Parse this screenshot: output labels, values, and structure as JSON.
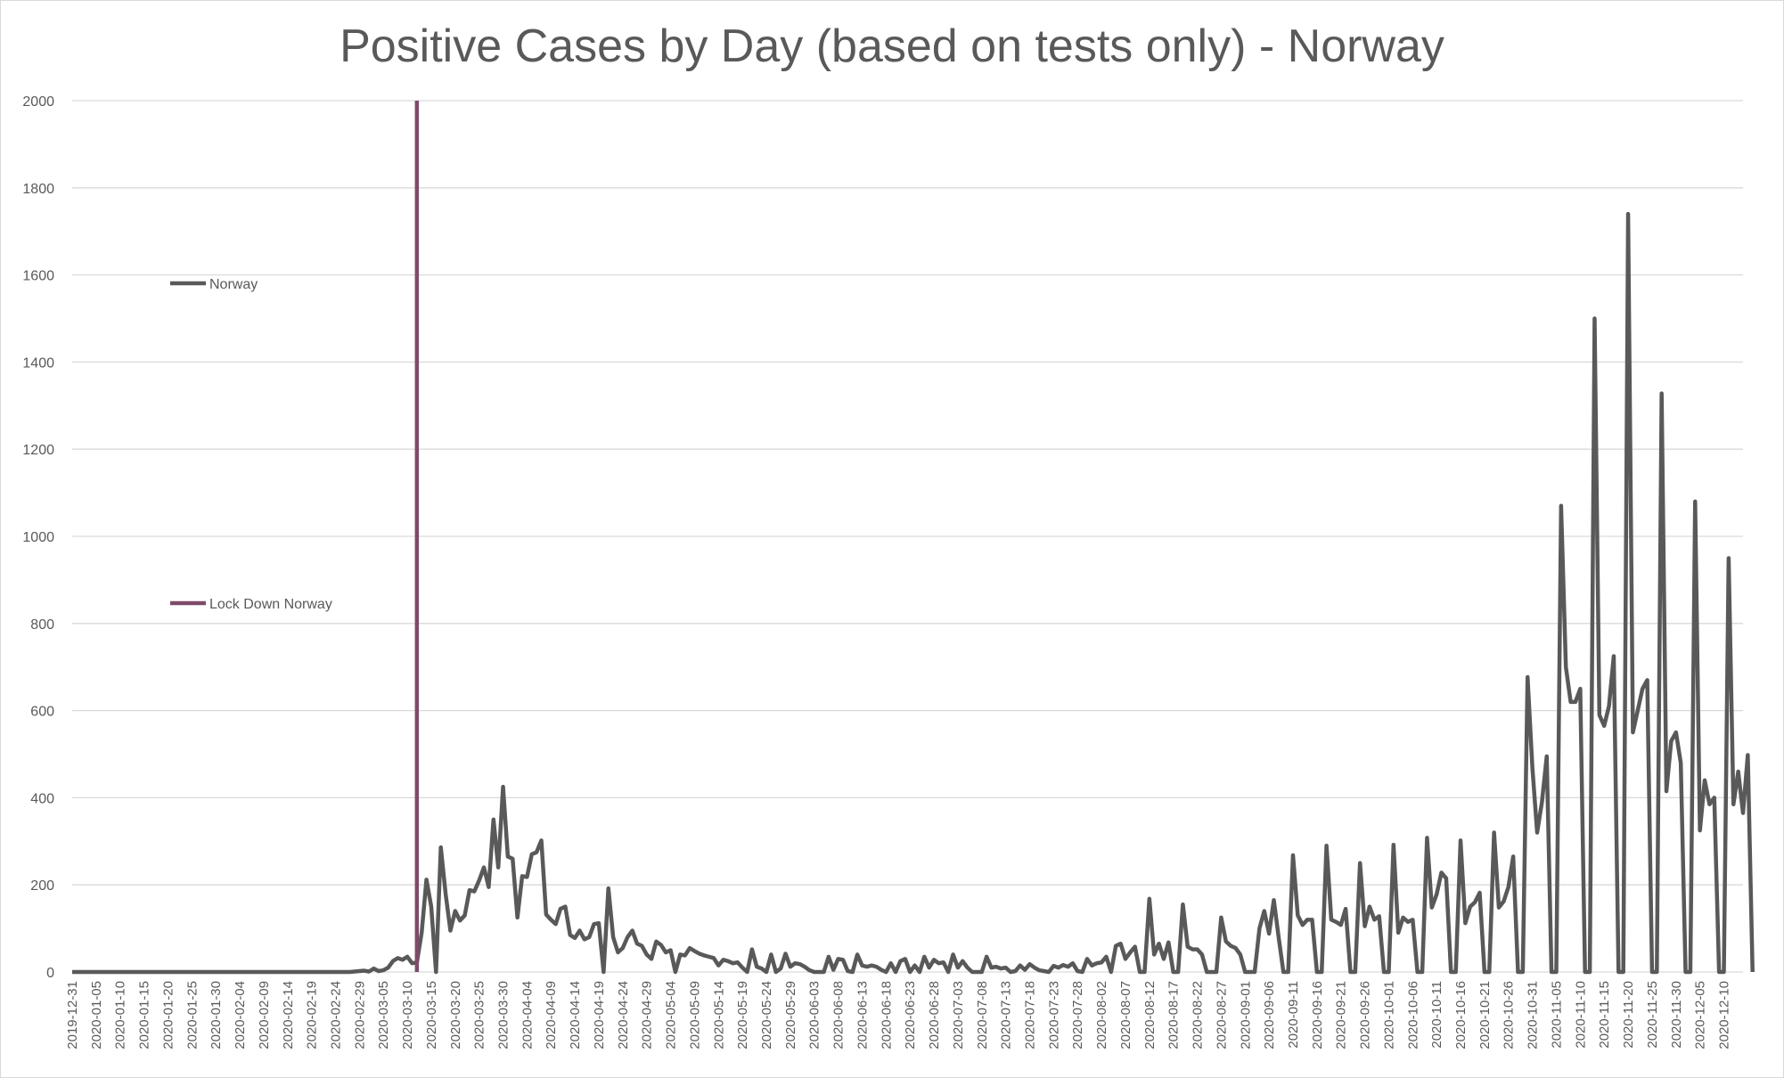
{
  "chart_data": {
    "type": "line",
    "title": "Positive Cases by Day (based on tests only) - Norway",
    "xlabel": "",
    "ylabel": "",
    "ylim": [
      0,
      2000
    ],
    "yticks": [
      0,
      200,
      400,
      600,
      800,
      1000,
      1200,
      1400,
      1600,
      1800,
      2000
    ],
    "grid": true,
    "legend_placement": "left",
    "x_start": "2019-12-31",
    "x_end": "2020-12-14",
    "x_tick_labels": [
      "2019-12-31",
      "2020-01-05",
      "2020-01-10",
      "2020-01-15",
      "2020-01-20",
      "2020-01-25",
      "2020-01-30",
      "2020-02-04",
      "2020-02-09",
      "2020-02-14",
      "2020-02-19",
      "2020-02-24",
      "2020-02-29",
      "2020-03-05",
      "2020-03-10",
      "2020-03-15",
      "2020-03-20",
      "2020-03-25",
      "2020-03-30",
      "2020-04-04",
      "2020-04-09",
      "2020-04-14",
      "2020-04-19",
      "2020-04-24",
      "2020-04-29",
      "2020-05-04",
      "2020-05-09",
      "2020-05-14",
      "2020-05-19",
      "2020-05-24",
      "2020-05-29",
      "2020-06-03",
      "2020-06-08",
      "2020-06-13",
      "2020-06-18",
      "2020-06-23",
      "2020-06-28",
      "2020-07-03",
      "2020-07-08",
      "2020-07-13",
      "2020-07-18",
      "2020-07-23",
      "2020-07-28",
      "2020-08-02",
      "2020-08-07",
      "2020-08-12",
      "2020-08-17",
      "2020-08-22",
      "2020-08-27",
      "2020-09-01",
      "2020-09-06",
      "2020-09-11",
      "2020-09-16",
      "2020-09-21",
      "2020-09-26",
      "2020-10-01",
      "2020-10-06",
      "2020-10-11",
      "2020-10-16",
      "2020-10-21",
      "2020-10-26",
      "2020-10-31",
      "2020-11-05",
      "2020-11-10",
      "2020-11-15",
      "2020-11-20",
      "2020-11-25",
      "2020-11-30",
      "2020-12-05",
      "2020-12-10"
    ],
    "series": [
      {
        "name": "Norway",
        "color": "#595959",
        "values": [
          0,
          0,
          0,
          0,
          0,
          0,
          0,
          0,
          0,
          0,
          0,
          0,
          0,
          0,
          0,
          0,
          0,
          0,
          0,
          0,
          0,
          0,
          0,
          0,
          0,
          0,
          0,
          0,
          0,
          0,
          0,
          0,
          0,
          0,
          0,
          0,
          0,
          0,
          0,
          0,
          0,
          0,
          0,
          0,
          0,
          0,
          0,
          0,
          0,
          0,
          0,
          0,
          0,
          0,
          0,
          0,
          0,
          0,
          0,
          1,
          2,
          3,
          1,
          8,
          2,
          4,
          10,
          25,
          32,
          28,
          35,
          20,
          22,
          90,
          212,
          150,
          0,
          286,
          180,
          95,
          140,
          118,
          130,
          188,
          185,
          210,
          240,
          195,
          350,
          240,
          425,
          265,
          260,
          125,
          220,
          218,
          270,
          275,
          302,
          132,
          120,
          110,
          145,
          150,
          85,
          78,
          95,
          75,
          80,
          110,
          112,
          0,
          192,
          80,
          45,
          55,
          80,
          95,
          65,
          60,
          40,
          30,
          70,
          62,
          45,
          50,
          0,
          40,
          38,
          55,
          48,
          42,
          38,
          35,
          32,
          15,
          28,
          25,
          20,
          22,
          10,
          0,
          52,
          12,
          8,
          0,
          40,
          0,
          8,
          42,
          12,
          20,
          18,
          12,
          4,
          0,
          0,
          0,
          35,
          5,
          30,
          28,
          2,
          0,
          40,
          15,
          12,
          15,
          12,
          5,
          0,
          20,
          0,
          25,
          30,
          0,
          15,
          0,
          35,
          10,
          28,
          20,
          22,
          0,
          40,
          10,
          25,
          10,
          0,
          0,
          0,
          35,
          10,
          12,
          8,
          10,
          0,
          2,
          15,
          5,
          18,
          10,
          4,
          2,
          0,
          14,
          10,
          16,
          12,
          20,
          2,
          0,
          30,
          15,
          20,
          22,
          35,
          0,
          60,
          65,
          30,
          45,
          58,
          0,
          0,
          168,
          40,
          65,
          30,
          68,
          0,
          0,
          155,
          58,
          52,
          52,
          40,
          0,
          0,
          0,
          125,
          70,
          60,
          55,
          40,
          0,
          0,
          0,
          100,
          140,
          88,
          165,
          80,
          0,
          0,
          268,
          130,
          108,
          120,
          120,
          0,
          0,
          290,
          120,
          115,
          108,
          145,
          0,
          0,
          250,
          105,
          150,
          120,
          128,
          0,
          0,
          292,
          90,
          125,
          115,
          120,
          0,
          0,
          308,
          148,
          178,
          228,
          215,
          0,
          0,
          302,
          112,
          150,
          160,
          182,
          0,
          0,
          320,
          148,
          162,
          195,
          265,
          0,
          0,
          677,
          470,
          320,
          390,
          495,
          0,
          0,
          1070,
          700,
          620,
          620,
          650,
          0,
          0,
          1500,
          590,
          565,
          610,
          725,
          0,
          0,
          1740,
          550,
          600,
          650,
          670,
          0,
          0,
          1328,
          415,
          530,
          550,
          480,
          0,
          0,
          1080,
          325,
          440,
          385,
          400,
          0,
          0,
          950,
          385,
          460,
          365,
          498,
          0
        ]
      },
      {
        "name": "Lock Down Norway",
        "color": "#7f4a6a",
        "date": "2020-03-12",
        "values": [
          0,
          2000
        ]
      }
    ]
  }
}
